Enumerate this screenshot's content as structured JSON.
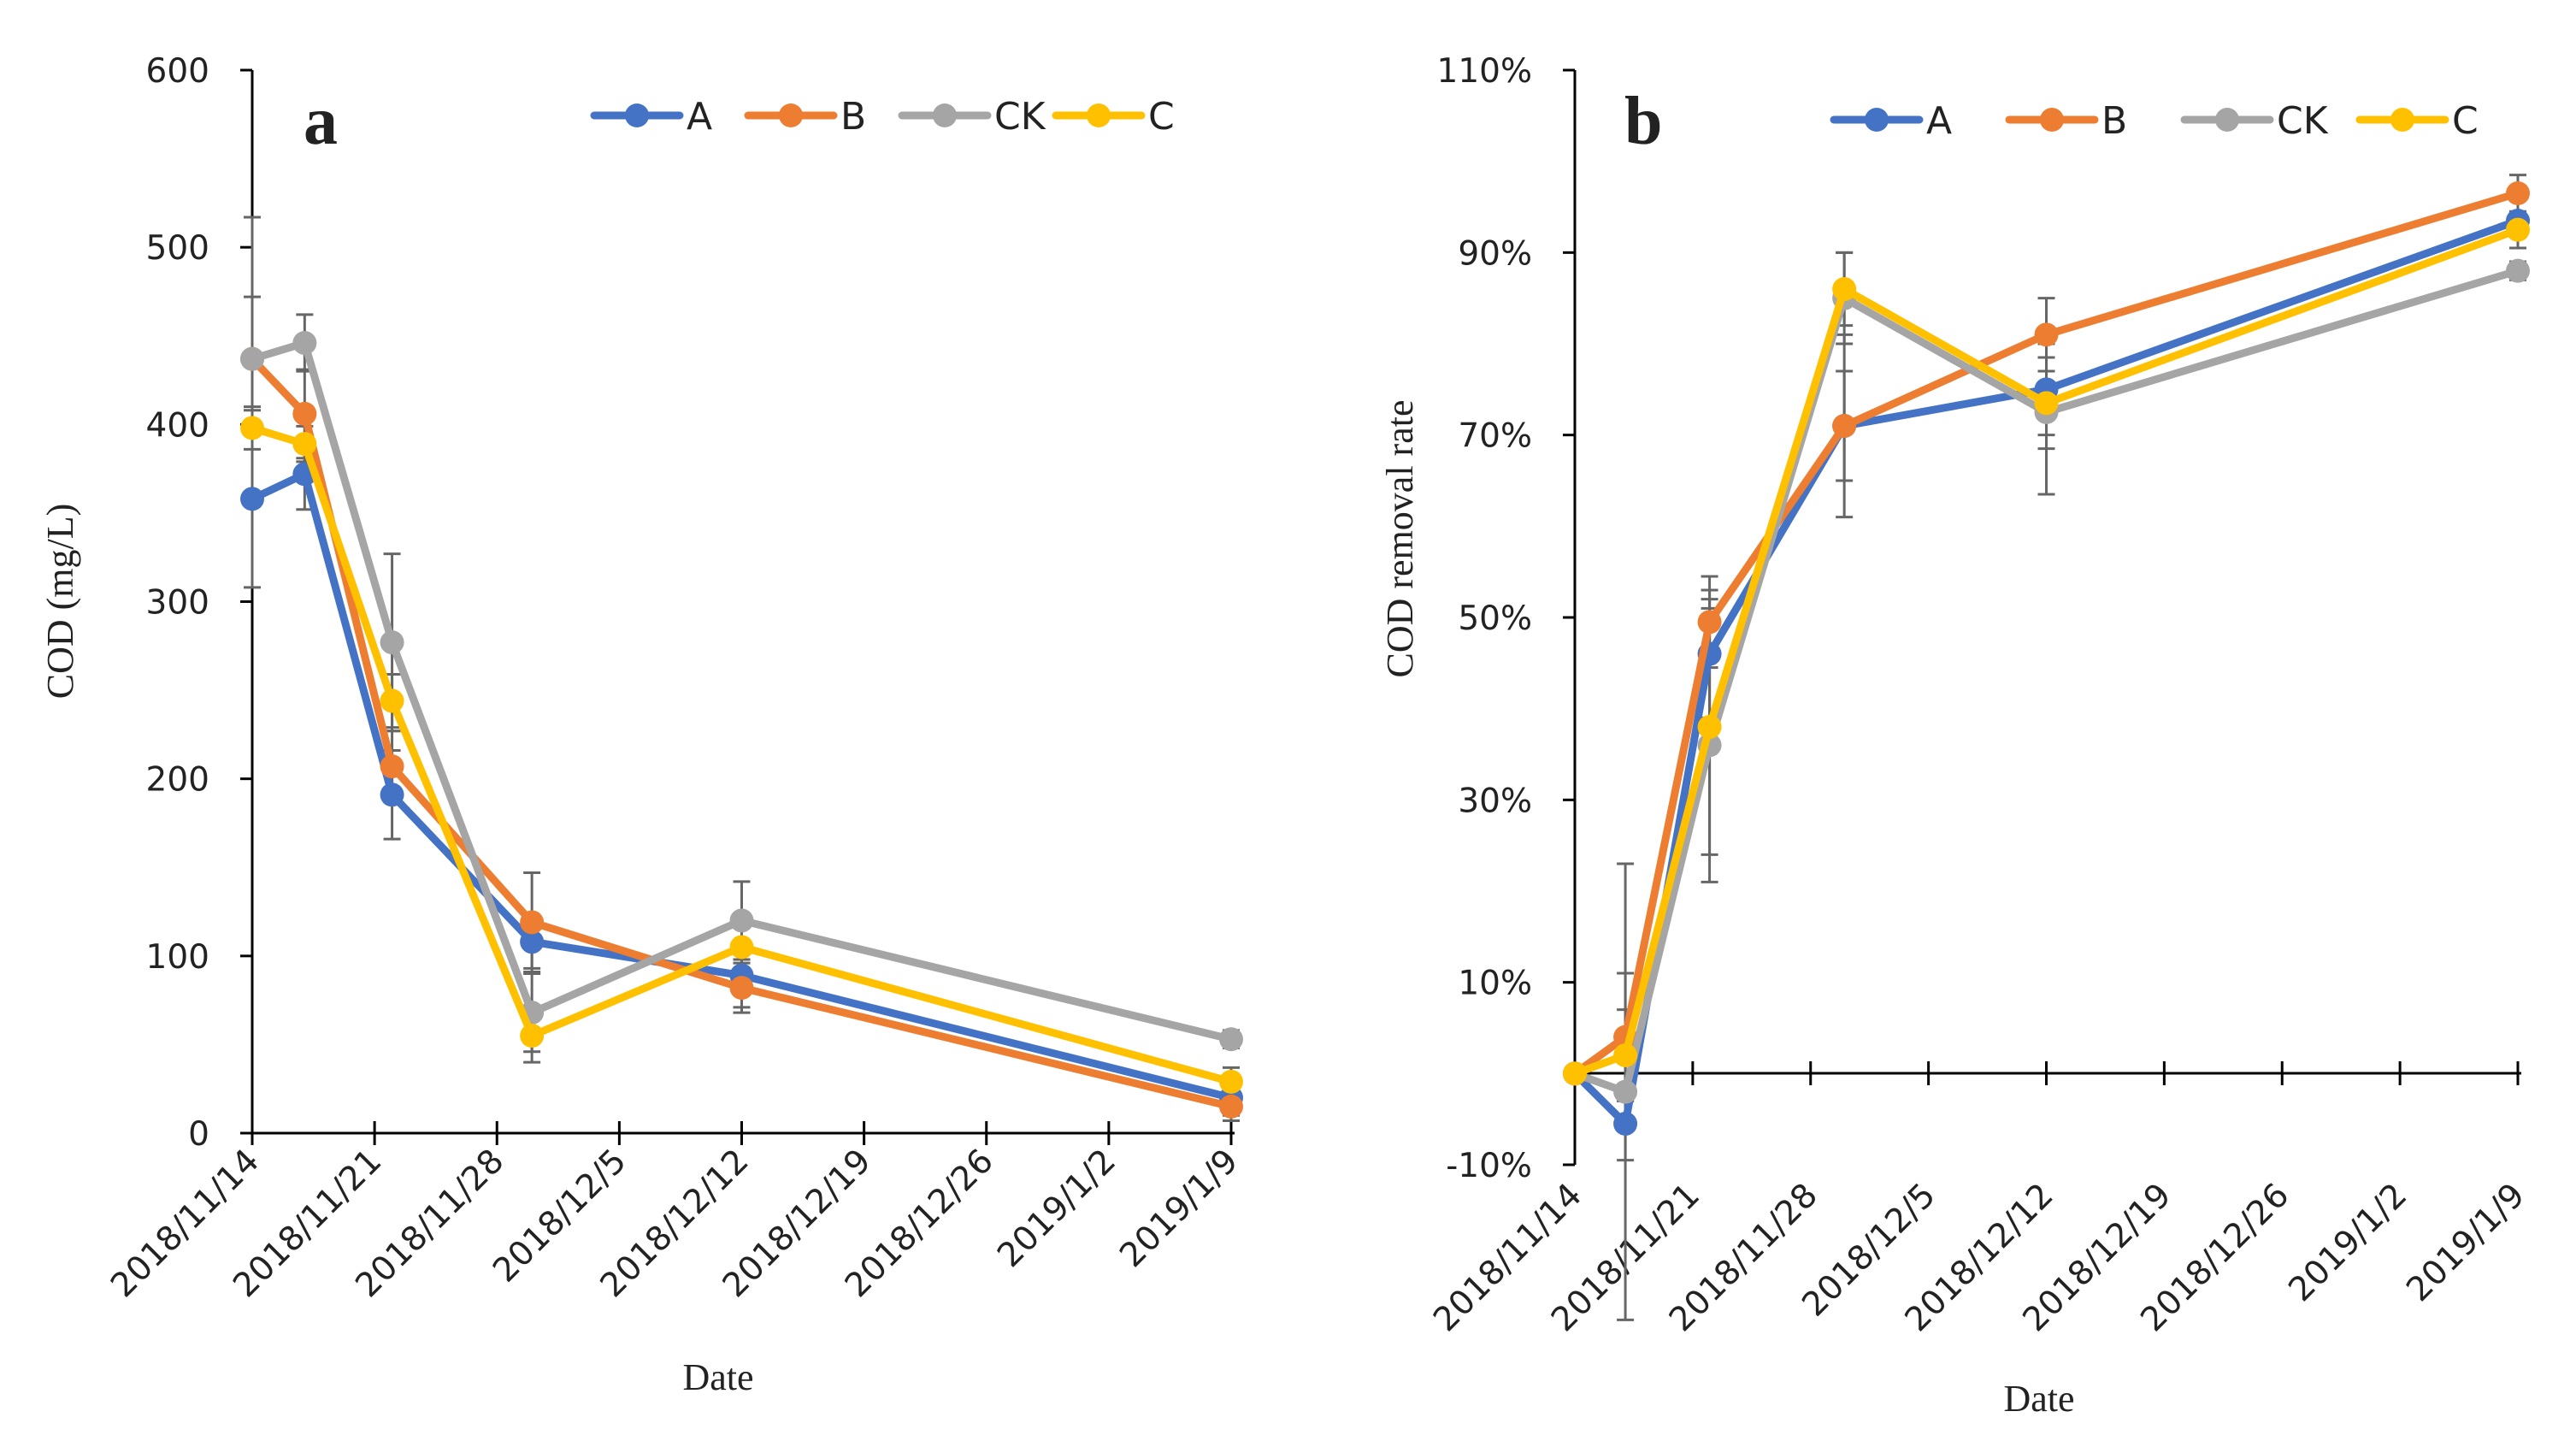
{
  "figure": {
    "background": "#ffffff",
    "axis_color": "#000000",
    "errorbar_color": "#666666"
  },
  "chart_data": [
    {
      "type": "line",
      "panel_label": "a",
      "title": "",
      "xlabel": "Date",
      "ylabel": "COD (mg/L)",
      "ylim": [
        0,
        600
      ],
      "yticks": [
        0,
        100,
        200,
        300,
        400,
        500,
        600
      ],
      "ytick_labels": [
        "0",
        "100",
        "200",
        "300",
        "400",
        "500",
        "600"
      ],
      "xlim": [
        0,
        56
      ],
      "xticks": [
        0,
        7,
        14,
        21,
        28,
        35,
        42,
        49,
        56
      ],
      "xtick_labels": [
        "2018/11/14",
        "2018/11/21",
        "2018/11/28",
        "2018/12/5",
        "2018/12/12",
        "2018/12/19",
        "2018/12/26",
        "2019/1/2",
        "2019/1/9"
      ],
      "x": [
        0,
        3,
        8,
        16,
        28,
        56
      ],
      "grid": false,
      "legend": "top-right",
      "series": [
        {
          "name": "A",
          "color": "#4472C4",
          "values": [
            358,
            372,
            191,
            108,
            89,
            20
          ],
          "errors": [
            50,
            20,
            25,
            15,
            18,
            10
          ]
        },
        {
          "name": "B",
          "color": "#ED7D31",
          "values": [
            437,
            406,
            207,
            119,
            82,
            15
          ],
          "errors": [
            35,
            25,
            20,
            28,
            14,
            8
          ]
        },
        {
          "name": "CK",
          "color": "#A5A5A5",
          "values": [
            437,
            446,
            277,
            68,
            120,
            53
          ],
          "errors": [
            80,
            16,
            50,
            22,
            22,
            5
          ]
        },
        {
          "name": "C",
          "color": "#FFC000",
          "values": [
            398,
            389,
            244,
            55,
            105,
            29
          ],
          "errors": [
            12,
            10,
            15,
            15,
            18,
            8
          ]
        }
      ]
    },
    {
      "type": "line",
      "panel_label": "b",
      "title": "",
      "xlabel": "Date",
      "ylabel": "COD removal rate",
      "ylim": [
        -10,
        110
      ],
      "yticks": [
        -10,
        10,
        30,
        50,
        70,
        90,
        110
      ],
      "ytick_labels": [
        "-10%",
        "10%",
        "30%",
        "50%",
        "70%",
        "90%",
        "110%"
      ],
      "xlim": [
        0,
        56
      ],
      "xticks": [
        0,
        7,
        14,
        21,
        28,
        35,
        42,
        49,
        56
      ],
      "xtick_labels": [
        "2018/11/14",
        "2018/11/21",
        "2018/11/28",
        "2018/12/5",
        "2018/12/12",
        "2018/12/19",
        "2018/12/26",
        "2019/1/2",
        "2019/1/9"
      ],
      "x": [
        0,
        3,
        8,
        16,
        28,
        56
      ],
      "grid": false,
      "legend": "top-right",
      "series": [
        {
          "name": "A",
          "color": "#4472C4",
          "values": [
            0,
            -5.5,
            46,
            71,
            75,
            93.5
          ],
          "errors": [
            0,
            4,
            7,
            10,
            5,
            3
          ]
        },
        {
          "name": "B",
          "color": "#ED7D31",
          "values": [
            0,
            4,
            49.5,
            71,
            81,
            96.5
          ],
          "errors": [
            0,
            7,
            5,
            6,
            4,
            2
          ]
        },
        {
          "name": "CK",
          "color": "#A5A5A5",
          "values": [
            0,
            -2,
            36,
            85,
            72.5,
            88
          ],
          "errors": [
            0,
            25,
            15,
            5,
            9,
            1
          ]
        },
        {
          "name": "C",
          "color": "#FFC000",
          "values": [
            0,
            2,
            38,
            86,
            73.5,
            92.5
          ],
          "errors": [
            0,
            5,
            14,
            4,
            5,
            2
          ]
        }
      ]
    }
  ]
}
